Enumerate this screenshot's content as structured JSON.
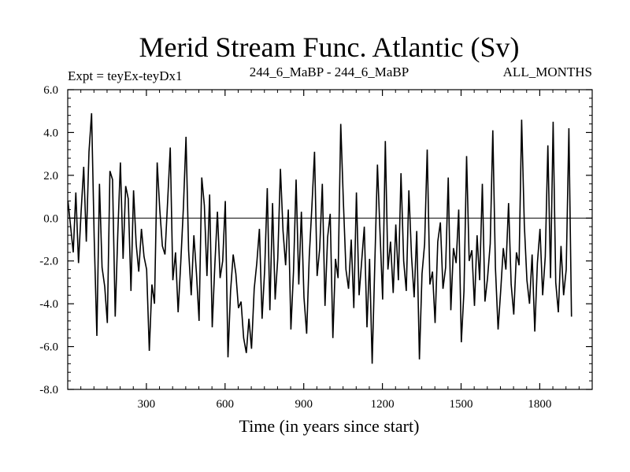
{
  "chart_data": {
    "type": "line",
    "title": "Merid Stream Func. Atlantic (Sv)",
    "subtitle_left": "Expt = teyEx-teyDx1",
    "subtitle_center": "244_6_MaBP - 244_6_MaBP",
    "subtitle_right": "ALL_MONTHS",
    "xlabel": "Time (in years since start)",
    "ylabel": "",
    "xlim": [
      0,
      2000
    ],
    "ylim": [
      -8.0,
      6.0
    ],
    "x_ticks": [
      300,
      600,
      900,
      1200,
      1500,
      1800
    ],
    "x_tick_labels": [
      "300",
      "600",
      "900",
      "1200",
      "1500",
      "1800"
    ],
    "y_ticks": [
      6.0,
      4.0,
      2.0,
      0.0,
      -2.0,
      -4.0,
      -6.0,
      -8.0
    ],
    "y_tick_labels": [
      "6.0",
      "4.0",
      "2.0",
      "0.0",
      "-2.0",
      "-4.0",
      "-6.0",
      "-8.0"
    ],
    "zero_line": 0.0,
    "grid": false,
    "series": [
      {
        "color": "#000000",
        "x_start": 1,
        "x_step": 10,
        "values": [
          0.8,
          -0.4,
          -1.6,
          1.2,
          -2.1,
          0.3,
          2.4,
          -1.1,
          3.1,
          4.9,
          -0.9,
          -5.5,
          1.6,
          -2.3,
          -3.2,
          -4.9,
          2.2,
          1.8,
          -4.6,
          -0.7,
          2.6,
          -1.9,
          1.5,
          0.9,
          -3.4,
          1.3,
          -1.2,
          -2.5,
          -0.5,
          -1.8,
          -2.4,
          -6.2,
          -3.1,
          -4.0,
          2.6,
          0.4,
          -1.3,
          -1.7,
          0.8,
          3.3,
          -2.9,
          -1.6,
          -4.4,
          -2.1,
          0.5,
          3.8,
          -1.5,
          -3.6,
          -0.8,
          -2.6,
          -4.8,
          1.9,
          0.6,
          -2.7,
          1.1,
          -5.1,
          -2.2,
          0.3,
          -2.8,
          -2.0,
          0.8,
          -6.5,
          -3.4,
          -1.7,
          -2.6,
          -4.2,
          -3.9,
          -5.6,
          -6.3,
          -4.7,
          -6.1,
          -3.3,
          -2.1,
          -0.5,
          -4.7,
          -2.4,
          1.4,
          -4.3,
          0.7,
          -3.8,
          -1.9,
          2.3,
          -0.6,
          -2.2,
          0.4,
          -5.2,
          -2.5,
          1.8,
          -3.1,
          0.3,
          -3.7,
          -5.4,
          -1.8,
          0.5,
          3.1,
          -2.7,
          -1.4,
          1.6,
          -4.1,
          -0.9,
          0.2,
          -5.6,
          -1.9,
          -2.8,
          4.4,
          0.8,
          -2.4,
          -3.3,
          -1.0,
          -4.2,
          1.2,
          -3.6,
          -2.0,
          -0.4,
          -5.1,
          -1.9,
          -6.8,
          -2.2,
          2.5,
          -0.7,
          -3.8,
          3.6,
          -2.4,
          -1.1,
          -3.5,
          -0.3,
          -2.9,
          2.1,
          -2.0,
          -3.4,
          1.3,
          -1.8,
          -3.7,
          -0.6,
          -6.6,
          -2.6,
          -1.2,
          3.2,
          -3.1,
          -2.5,
          -4.9,
          -1.1,
          -0.2,
          -3.3,
          -2.3,
          1.9,
          -4.3,
          -1.4,
          -2.1,
          0.4,
          -5.8,
          -3.4,
          2.9,
          -2.0,
          -1.5,
          -4.1,
          -0.8,
          -2.9,
          1.6,
          -3.9,
          -2.8,
          -1.2,
          4.1,
          -2.3,
          -5.2,
          -3.4,
          -1.4,
          -2.4,
          0.7,
          -3.1,
          -4.5,
          -1.6,
          -2.2,
          4.6,
          -0.3,
          -2.9,
          -4.0,
          -1.7,
          -5.3,
          -2.1,
          -0.5,
          -3.6,
          -1.8,
          3.4,
          -2.8,
          4.5,
          -3.0,
          -4.4,
          -1.3,
          -3.6,
          -2.4,
          4.2,
          -4.6
        ]
      }
    ]
  }
}
